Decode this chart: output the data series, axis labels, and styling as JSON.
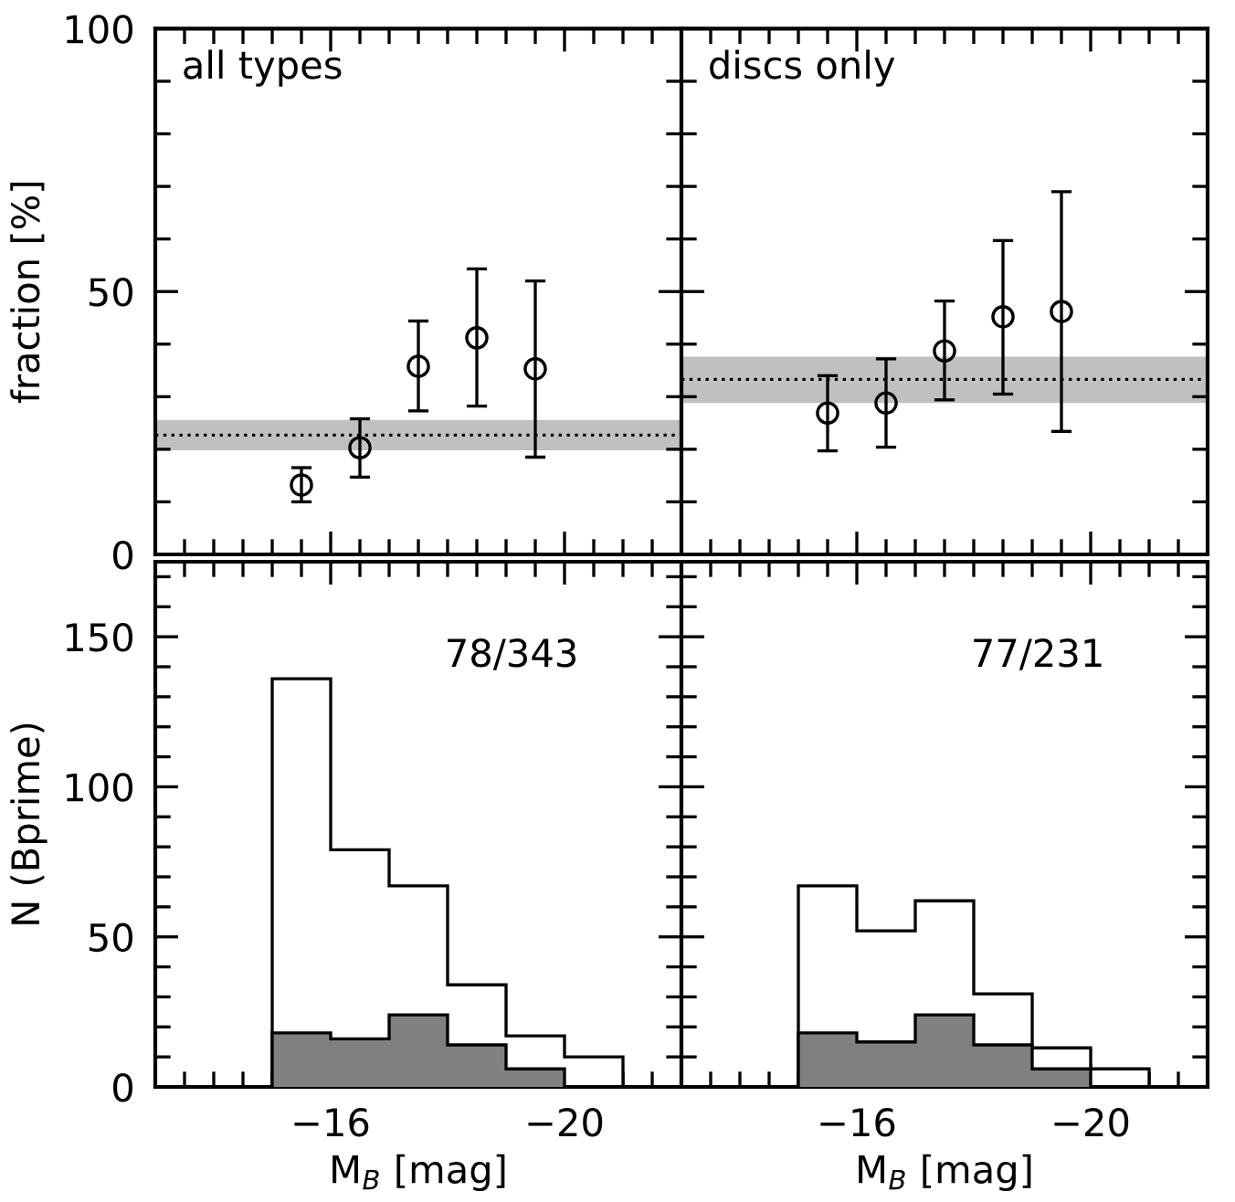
{
  "chart_data": [
    {
      "type": "scatter",
      "ylabel": "fraction [%]",
      "annotations": [
        "all types"
      ],
      "xlim": [
        -13,
        -22
      ],
      "ylim": [
        0,
        100
      ],
      "tick_labels": "y",
      "marker": "circle",
      "legend": false,
      "grid": false,
      "xticks": [
        {
          "value": -13.5,
          "label": null
        },
        {
          "value": -14,
          "label": null
        },
        {
          "value": -14.5,
          "label": null
        },
        {
          "value": -15,
          "label": null
        },
        {
          "value": -15.5,
          "label": null
        },
        -16,
        {
          "value": -16.5,
          "label": null
        },
        {
          "value": -17,
          "label": null
        },
        {
          "value": -17.5,
          "label": null
        },
        {
          "value": -18,
          "label": null
        },
        {
          "value": -18.5,
          "label": null
        },
        {
          "value": -19,
          "label": null
        },
        {
          "value": -19.5,
          "label": null
        },
        -20,
        {
          "value": -20.5,
          "label": null
        },
        {
          "value": -21,
          "label": null
        },
        {
          "value": -21.5,
          "label": null
        }
      ],
      "yticks": [
        0,
        {
          "value": 10,
          "label": null
        },
        {
          "value": 20,
          "label": null
        },
        {
          "value": 30,
          "label": null
        },
        {
          "value": 40,
          "label": null
        },
        50,
        {
          "value": 60,
          "label": null
        },
        {
          "value": 70,
          "label": null
        },
        {
          "value": 80,
          "label": null
        },
        {
          "value": 90,
          "label": null
        },
        100
      ],
      "x": [
        -15.5,
        -16.5,
        -17.5,
        -18.5,
        -19.5
      ],
      "series": [
        {
          "color": "#000000",
          "values": [
            13.2,
            20.3,
            35.8,
            41.2,
            35.3
          ],
          "errors": [
            [
              10,
              16.5
            ],
            [
              14.7,
              25.8
            ],
            [
              27.3,
              44.4
            ],
            [
              28.2,
              54.3
            ],
            [
              18.5,
              52
            ]
          ]
        }
      ],
      "ref_lines": [
        {
          "axis": "y",
          "value": 22.7,
          "color": "#000000",
          "line_style": "dotted"
        }
      ],
      "bands": [
        {
          "axis": "y",
          "from": 19.8,
          "to": 25.6,
          "color": "#c0c0c0"
        }
      ]
    },
    {
      "type": "scatter",
      "annotations": [
        "discs only"
      ],
      "xlim": [
        -13,
        -22
      ],
      "ylim": [
        0,
        100
      ],
      "tick_labels": false,
      "marker": "circle",
      "legend": false,
      "grid": false,
      "xticks": [
        {
          "value": -13.5,
          "label": null
        },
        {
          "value": -14,
          "label": null
        },
        {
          "value": -14.5,
          "label": null
        },
        {
          "value": -15,
          "label": null
        },
        {
          "value": -15.5,
          "label": null
        },
        -16,
        {
          "value": -16.5,
          "label": null
        },
        {
          "value": -17,
          "label": null
        },
        {
          "value": -17.5,
          "label": null
        },
        {
          "value": -18,
          "label": null
        },
        {
          "value": -18.5,
          "label": null
        },
        {
          "value": -19,
          "label": null
        },
        {
          "value": -19.5,
          "label": null
        },
        -20,
        {
          "value": -20.5,
          "label": null
        },
        {
          "value": -21,
          "label": null
        },
        {
          "value": -21.5,
          "label": null
        }
      ],
      "yticks": [
        0,
        {
          "value": 10,
          "label": null
        },
        {
          "value": 20,
          "label": null
        },
        {
          "value": 30,
          "label": null
        },
        {
          "value": 40,
          "label": null
        },
        50,
        {
          "value": 60,
          "label": null
        },
        {
          "value": 70,
          "label": null
        },
        {
          "value": 80,
          "label": null
        },
        {
          "value": 90,
          "label": null
        },
        100
      ],
      "x": [
        -15.5,
        -16.5,
        -17.5,
        -18.5,
        -19.5
      ],
      "series": [
        {
          "color": "#000000",
          "values": [
            26.9,
            28.8,
            38.7,
            45.2,
            46.2
          ],
          "errors": [
            [
              19.7,
              34
            ],
            [
              20.4,
              37.2
            ],
            [
              29.4,
              48.2
            ],
            [
              30.5,
              59.7
            ],
            [
              23.4,
              69
            ]
          ]
        }
      ],
      "ref_lines": [
        {
          "axis": "y",
          "value": 33.3,
          "color": "#000000",
          "line_style": "dotted"
        }
      ],
      "bands": [
        {
          "axis": "y",
          "from": 28.8,
          "to": 37.6,
          "color": "#c0c0c0"
        }
      ]
    },
    {
      "type": "histogram",
      "xlabel": "M$_{B}$ [mag]",
      "ylabel": "N (Bprime)",
      "annotations": [
        "78/343"
      ],
      "xlim": [
        -13,
        -22
      ],
      "ylim": [
        0,
        175
      ],
      "legend": false,
      "grid": false,
      "xticks": [
        {
          "value": -13.5,
          "label": null
        },
        {
          "value": -14,
          "label": null
        },
        {
          "value": -14.5,
          "label": null
        },
        {
          "value": -15,
          "label": null
        },
        {
          "value": -15.5,
          "label": null
        },
        -16,
        {
          "value": -16.5,
          "label": null
        },
        {
          "value": -17,
          "label": null
        },
        {
          "value": -17.5,
          "label": null
        },
        {
          "value": -18,
          "label": null
        },
        {
          "value": -18.5,
          "label": null
        },
        {
          "value": -19,
          "label": null
        },
        {
          "value": -19.5,
          "label": null
        },
        -20,
        {
          "value": -20.5,
          "label": null
        },
        {
          "value": -21,
          "label": null
        },
        {
          "value": -21.5,
          "label": null
        }
      ],
      "yticks": [
        0,
        {
          "value": 10,
          "label": null
        },
        {
          "value": 20,
          "label": null
        },
        {
          "value": 30,
          "label": null
        },
        {
          "value": 40,
          "label": null
        },
        50,
        {
          "value": 60,
          "label": null
        },
        {
          "value": 70,
          "label": null
        },
        {
          "value": 80,
          "label": null
        },
        {
          "value": 90,
          "label": null
        },
        100,
        {
          "value": 110,
          "label": null
        },
        {
          "value": 120,
          "label": null
        },
        {
          "value": 130,
          "label": null
        },
        {
          "value": 140,
          "label": null
        },
        150,
        {
          "value": 160,
          "label": null
        },
        {
          "value": 170,
          "label": null
        }
      ],
      "bins": [
        -15,
        -16,
        -17,
        -18,
        -19,
        -20,
        -21
      ],
      "series": [
        {
          "color": "#ffffff",
          "values": [
            136,
            79,
            67,
            34,
            17,
            10
          ]
        },
        {
          "color": "#808080",
          "values": [
            18,
            16,
            24,
            14,
            6,
            0
          ]
        }
      ]
    },
    {
      "type": "histogram",
      "xlabel": "M$_{B}$ [mag]",
      "annotations": [
        "77/231"
      ],
      "xlim": [
        -13,
        -22
      ],
      "ylim": [
        0,
        175
      ],
      "tick_labels": "x",
      "legend": false,
      "grid": false,
      "xticks": [
        {
          "value": -13.5,
          "label": null
        },
        {
          "value": -14,
          "label": null
        },
        {
          "value": -14.5,
          "label": null
        },
        {
          "value": -15,
          "label": null
        },
        {
          "value": -15.5,
          "label": null
        },
        -16,
        {
          "value": -16.5,
          "label": null
        },
        {
          "value": -17,
          "label": null
        },
        {
          "value": -17.5,
          "label": null
        },
        {
          "value": -18,
          "label": null
        },
        {
          "value": -18.5,
          "label": null
        },
        {
          "value": -19,
          "label": null
        },
        {
          "value": -19.5,
          "label": null
        },
        -20,
        {
          "value": -20.5,
          "label": null
        },
        {
          "value": -21,
          "label": null
        },
        {
          "value": -21.5,
          "label": null
        }
      ],
      "yticks": [
        0,
        {
          "value": 10,
          "label": null
        },
        {
          "value": 20,
          "label": null
        },
        {
          "value": 30,
          "label": null
        },
        {
          "value": 40,
          "label": null
        },
        50,
        {
          "value": 60,
          "label": null
        },
        {
          "value": 70,
          "label": null
        },
        {
          "value": 80,
          "label": null
        },
        {
          "value": 90,
          "label": null
        },
        100,
        {
          "value": 110,
          "label": null
        },
        {
          "value": 120,
          "label": null
        },
        {
          "value": 130,
          "label": null
        },
        {
          "value": 140,
          "label": null
        },
        150,
        {
          "value": 160,
          "label": null
        },
        {
          "value": 170,
          "label": null
        }
      ],
      "bins": [
        -15,
        -16,
        -17,
        -18,
        -19,
        -20,
        -21
      ],
      "series": [
        {
          "color": "#ffffff",
          "values": [
            67,
            52,
            62,
            31,
            13,
            6
          ]
        },
        {
          "color": "#808080",
          "values": [
            18,
            15,
            24,
            14,
            6,
            0
          ]
        }
      ]
    }
  ]
}
